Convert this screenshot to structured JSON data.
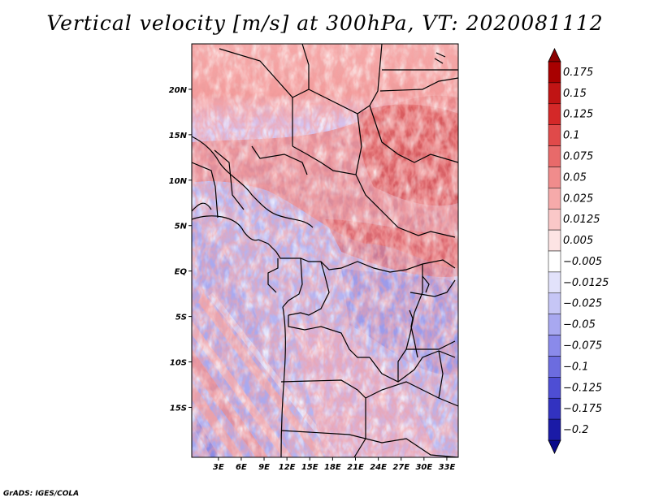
{
  "title": "Vertical velocity [m/s] at 300hPa, VT: 2020081112",
  "footer": "GrADS: IGES/COLA",
  "map": {
    "lon_range": [
      -0.5,
      34.5
    ],
    "lat_range": [
      -20.5,
      25
    ],
    "lat_ticks": [
      {
        "v": 20,
        "label": "20N"
      },
      {
        "v": 15,
        "label": "15N"
      },
      {
        "v": 10,
        "label": "10N"
      },
      {
        "v": 5,
        "label": "5N"
      },
      {
        "v": 0,
        "label": "EQ"
      },
      {
        "v": -5,
        "label": "5S"
      },
      {
        "v": -10,
        "label": "10S"
      },
      {
        "v": -15,
        "label": "15S"
      }
    ],
    "lon_ticks": [
      {
        "v": 3,
        "label": "3E"
      },
      {
        "v": 6,
        "label": "6E"
      },
      {
        "v": 9,
        "label": "9E"
      },
      {
        "v": 12,
        "label": "12E"
      },
      {
        "v": 15,
        "label": "15E"
      },
      {
        "v": 18,
        "label": "18E"
      },
      {
        "v": 21,
        "label": "21E"
      },
      {
        "v": 24,
        "label": "24E"
      },
      {
        "v": 27,
        "label": "27E"
      },
      {
        "v": 30,
        "label": "30E"
      },
      {
        "v": 33,
        "label": "33E"
      }
    ]
  },
  "colorbar": {
    "levels": [
      {
        "label": "0.175",
        "color": "#a80000"
      },
      {
        "label": "0.15",
        "color": "#c01414"
      },
      {
        "label": "0.125",
        "color": "#d42828"
      },
      {
        "label": "0.1",
        "color": "#e04a4a"
      },
      {
        "label": "0.075",
        "color": "#e86a6a"
      },
      {
        "label": "0.05",
        "color": "#f08c8c"
      },
      {
        "label": "0.025",
        "color": "#f6aaaa"
      },
      {
        "label": "0.0125",
        "color": "#fac8c8"
      },
      {
        "label": "0.005",
        "color": "#fde4e4"
      },
      {
        "label": "-0.005",
        "color": "#ffffff"
      },
      {
        "label": "-0.0125",
        "color": "#e2e2fb"
      },
      {
        "label": "-0.025",
        "color": "#c6c6f6"
      },
      {
        "label": "-0.05",
        "color": "#a8a8f0"
      },
      {
        "label": "-0.075",
        "color": "#8a8aea"
      },
      {
        "label": "-0.1",
        "color": "#6c6cdf"
      },
      {
        "label": "-0.125",
        "color": "#4e4ed4"
      },
      {
        "label": "-0.175",
        "color": "#3232c0"
      },
      {
        "label": "-0.2",
        "color": "#1a1aa6"
      }
    ],
    "top_color": "#8b0000",
    "bottom_color": "#0a0a8a"
  }
}
